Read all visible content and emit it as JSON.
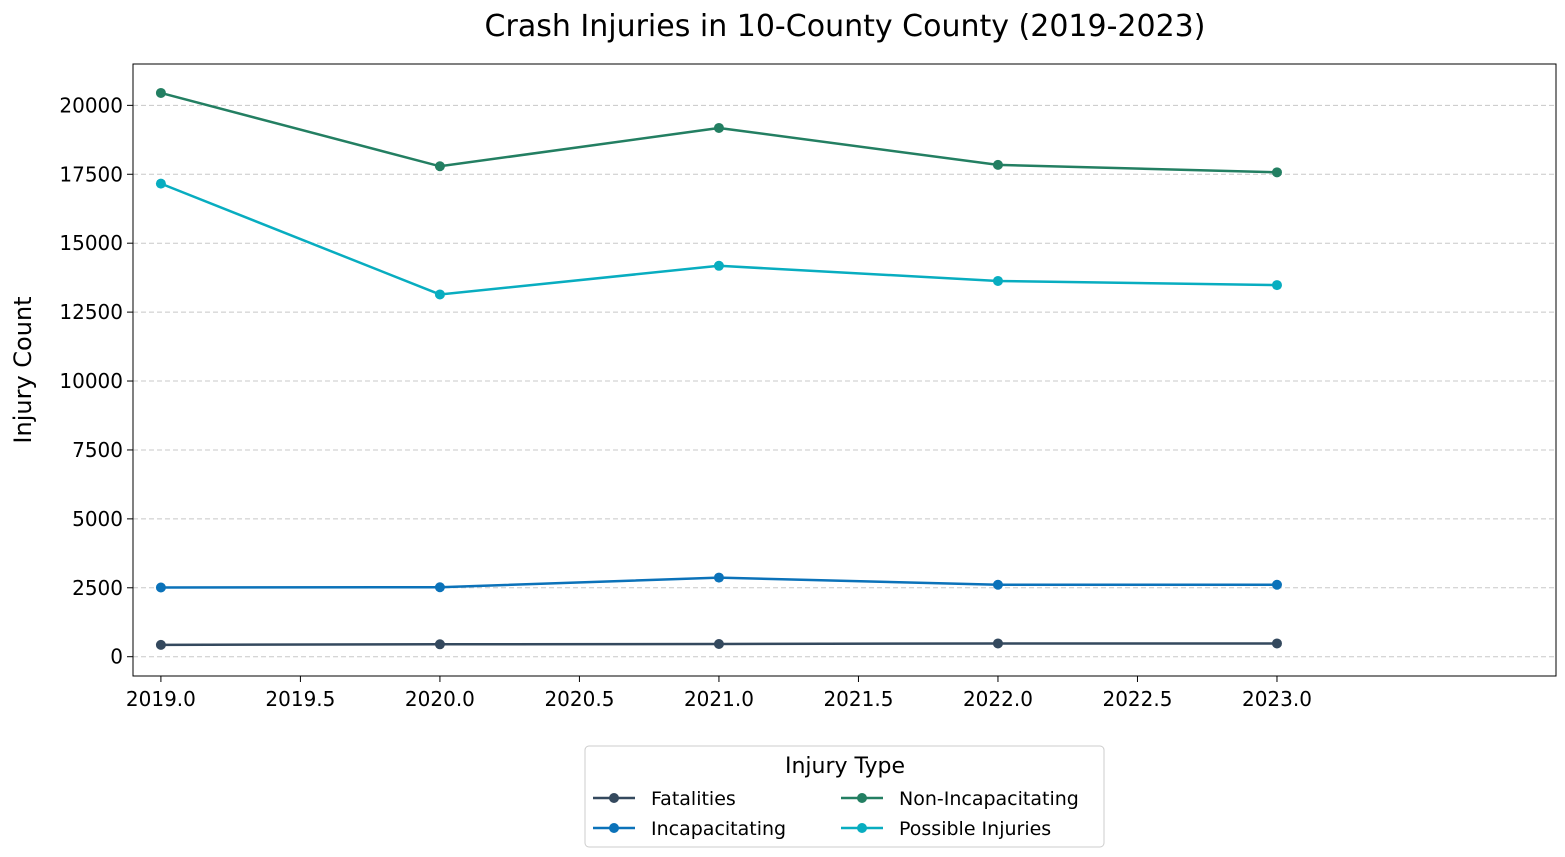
{
  "chart_data": {
    "type": "line",
    "title": "Crash Injuries in 10-County County (2019-2023)",
    "xlabel": "",
    "ylabel": "Injury Count",
    "x": [
      2019,
      2020,
      2021,
      2022,
      2023
    ],
    "xlim": [
      2018.9,
      2024.0
    ],
    "ylim": [
      -700,
      21500
    ],
    "x_ticks": [
      "2019.0",
      "2019.5",
      "2020.0",
      "2020.5",
      "2021.0",
      "2021.5",
      "2022.0",
      "2022.5",
      "2023.0"
    ],
    "x_tick_values": [
      2019.0,
      2019.5,
      2020.0,
      2020.5,
      2021.0,
      2021.5,
      2022.0,
      2022.5,
      2023.0
    ],
    "y_ticks": [
      "0",
      "2500",
      "5000",
      "7500",
      "10000",
      "12500",
      "15000",
      "17500",
      "20000"
    ],
    "y_tick_values": [
      0,
      2500,
      5000,
      7500,
      10000,
      12500,
      15000,
      17500,
      20000
    ],
    "grid": "horizontal dashed",
    "legend_title": "Injury Type",
    "legend_position": "bottom-center",
    "series": [
      {
        "name": "Fatalities",
        "color": "#34495e",
        "values": [
          430,
          450,
          460,
          480,
          480
        ]
      },
      {
        "name": "Incapacitating",
        "color": "#0b72b9",
        "values": [
          2510,
          2520,
          2870,
          2610,
          2610
        ]
      },
      {
        "name": "Non-Incapacitating",
        "color": "#237f62",
        "values": [
          20450,
          17790,
          19180,
          17840,
          17570
        ]
      },
      {
        "name": "Possible Injuries",
        "color": "#08adc0",
        "values": [
          17160,
          13140,
          14180,
          13630,
          13480
        ]
      }
    ]
  }
}
